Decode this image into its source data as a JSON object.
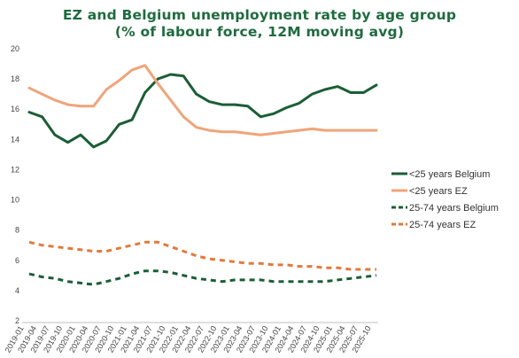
{
  "chart_data": {
    "type": "line",
    "title": "EZ and Belgium unemployment rate by age group",
    "subtitle": "(% of labour force, 12M moving avg)",
    "xlabel": "",
    "ylabel": "",
    "ylim": [
      2,
      20
    ],
    "yticks": [
      2,
      4,
      6,
      8,
      10,
      12,
      14,
      16,
      18,
      20
    ],
    "grid": false,
    "legend": "right",
    "x": [
      "2019-01",
      "2019-04",
      "2019-07",
      "2019-10",
      "2020-01",
      "2020-04",
      "2020-07",
      "2020-10",
      "2021-01",
      "2021-04",
      "2021-07",
      "2021-10",
      "2022-01",
      "2022-04",
      "2022-07",
      "2022-10",
      "2023-01",
      "2023-04",
      "2023-07",
      "2023-10",
      "2024-01",
      "2024-04",
      "2024-07",
      "2024-10",
      "2025-01",
      "2025-04",
      "2025-07",
      "2025-10"
    ],
    "series": [
      {
        "name": "<25 years Belgium",
        "color": "#1b5e35",
        "dash": false,
        "values": [
          15.8,
          15.5,
          14.3,
          13.8,
          14.3,
          13.5,
          13.9,
          15.0,
          15.3,
          17.1,
          18.0,
          18.3,
          18.2,
          17.0,
          16.5,
          16.3,
          16.3,
          16.2,
          15.5,
          15.7,
          16.1,
          16.4,
          17.0,
          17.3,
          17.5,
          17.1,
          17.1,
          17.6
        ]
      },
      {
        "name": "<25 years EZ",
        "color": "#f0a47a",
        "dash": false,
        "values": [
          17.4,
          17.0,
          16.6,
          16.3,
          16.2,
          16.2,
          17.3,
          17.9,
          18.6,
          18.9,
          17.7,
          16.6,
          15.5,
          14.8,
          14.6,
          14.5,
          14.5,
          14.4,
          14.3,
          14.4,
          14.5,
          14.6,
          14.7,
          14.6,
          14.6,
          14.6,
          14.6,
          14.6
        ]
      },
      {
        "name": "25-74 years Belgium",
        "color": "#1b5e35",
        "dash": true,
        "values": [
          5.1,
          4.9,
          4.8,
          4.6,
          4.5,
          4.4,
          4.6,
          4.8,
          5.1,
          5.3,
          5.3,
          5.2,
          5.0,
          4.8,
          4.7,
          4.6,
          4.7,
          4.7,
          4.7,
          4.6,
          4.6,
          4.6,
          4.6,
          4.6,
          4.7,
          4.8,
          4.9,
          5.0
        ]
      },
      {
        "name": "25-74 years EZ",
        "color": "#e07a3c",
        "dash": true,
        "values": [
          7.2,
          7.0,
          6.9,
          6.8,
          6.7,
          6.6,
          6.6,
          6.8,
          7.0,
          7.2,
          7.2,
          6.9,
          6.6,
          6.3,
          6.1,
          6.0,
          5.9,
          5.8,
          5.8,
          5.7,
          5.7,
          5.6,
          5.6,
          5.5,
          5.5,
          5.4,
          5.4,
          5.4
        ]
      }
    ]
  }
}
